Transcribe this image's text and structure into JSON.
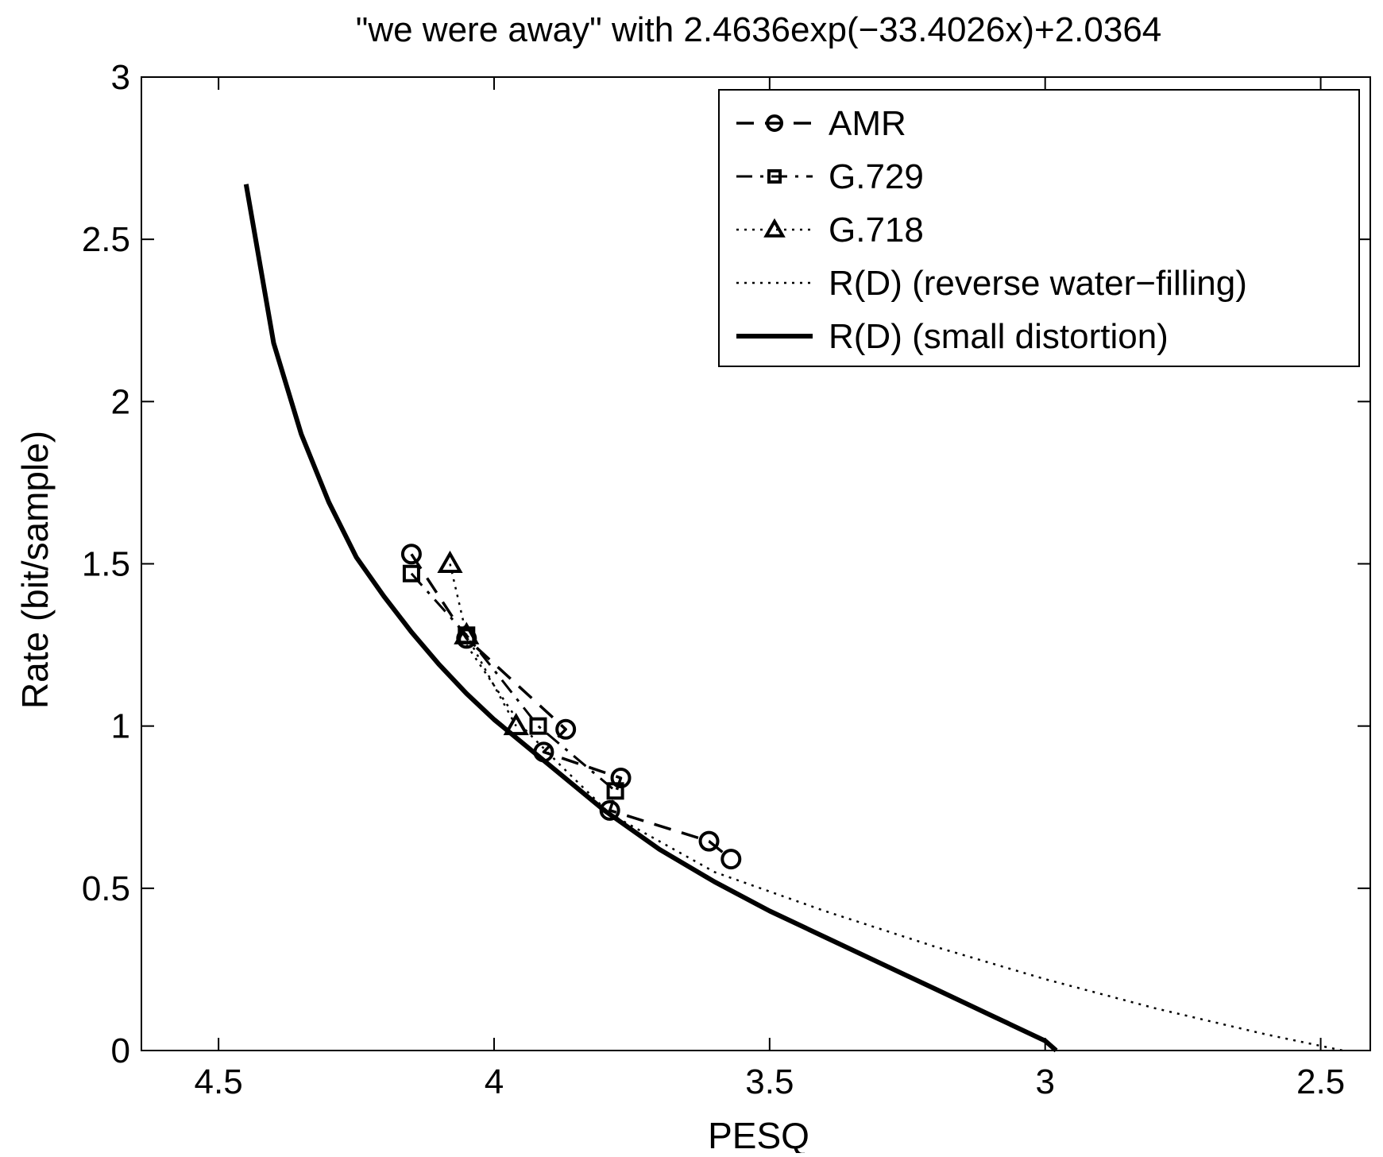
{
  "chart_data": {
    "type": "line",
    "title": "\"we were away\" with 2.4636exp(−33.4026x)+2.0364",
    "xlabel": "PESQ",
    "ylabel": "Rate (bit/sample)",
    "xlim": [
      4.64,
      2.41
    ],
    "ylim": [
      0,
      3
    ],
    "x_reversed": true,
    "xticks": [
      4.5,
      4,
      3.5,
      3,
      2.5
    ],
    "xtick_labels": [
      "4.5",
      "4",
      "3.5",
      "3",
      "2.5"
    ],
    "yticks": [
      0,
      0.5,
      1,
      1.5,
      2,
      2.5,
      3
    ],
    "ytick_labels": [
      "0",
      "0.5",
      "1",
      "1.5",
      "2",
      "2.5",
      "3"
    ],
    "grid": false,
    "legend_position": "top-right",
    "series": [
      {
        "name": "AMR",
        "line_style": "dashed",
        "marker": "circle",
        "line_width": 3.5,
        "points": [
          {
            "x": 4.15,
            "y": 1.53
          },
          {
            "x": 4.05,
            "y": 1.27
          },
          {
            "x": 3.87,
            "y": 0.99
          },
          {
            "x": 3.91,
            "y": 0.92
          },
          {
            "x": 3.77,
            "y": 0.84
          },
          {
            "x": 3.79,
            "y": 0.74
          },
          {
            "x": 3.61,
            "y": 0.645
          },
          {
            "x": 3.57,
            "y": 0.59
          }
        ]
      },
      {
        "name": "G.729",
        "line_style": "dashdot",
        "marker": "square",
        "line_width": 3,
        "points": [
          {
            "x": 4.15,
            "y": 1.47
          },
          {
            "x": 4.05,
            "y": 1.28
          },
          {
            "x": 3.92,
            "y": 1.0
          },
          {
            "x": 3.78,
            "y": 0.8
          }
        ]
      },
      {
        "name": "G.718",
        "line_style": "dotted",
        "marker": "triangle",
        "line_width": 2.5,
        "points": [
          {
            "x": 4.08,
            "y": 1.5
          },
          {
            "x": 4.05,
            "y": 1.28
          },
          {
            "x": 3.96,
            "y": 1.0
          }
        ]
      },
      {
        "name": "R(D) (reverse water−filling)",
        "line_style": "dotted",
        "marker": "none",
        "line_width": 2.5,
        "points": [
          {
            "x": 4.05,
            "y": 1.25
          },
          {
            "x": 3.95,
            "y": 1.0
          },
          {
            "x": 3.88,
            "y": 0.88
          },
          {
            "x": 3.79,
            "y": 0.73
          },
          {
            "x": 3.6,
            "y": 0.55
          },
          {
            "x": 3.4,
            "y": 0.43
          },
          {
            "x": 3.2,
            "y": 0.32
          },
          {
            "x": 3.0,
            "y": 0.22
          },
          {
            "x": 2.8,
            "y": 0.13
          },
          {
            "x": 2.6,
            "y": 0.05
          },
          {
            "x": 2.46,
            "y": 0.0
          }
        ]
      },
      {
        "name": "R(D) (small distortion)",
        "line_style": "solid",
        "marker": "none",
        "line_width": 6,
        "points": [
          {
            "x": 4.45,
            "y": 2.67
          },
          {
            "x": 4.4,
            "y": 2.18
          },
          {
            "x": 4.35,
            "y": 1.9
          },
          {
            "x": 4.3,
            "y": 1.69
          },
          {
            "x": 4.25,
            "y": 1.52
          },
          {
            "x": 4.2,
            "y": 1.4
          },
          {
            "x": 4.15,
            "y": 1.29
          },
          {
            "x": 4.1,
            "y": 1.19
          },
          {
            "x": 4.05,
            "y": 1.1
          },
          {
            "x": 4.0,
            "y": 1.02
          },
          {
            "x": 3.9,
            "y": 0.88
          },
          {
            "x": 3.8,
            "y": 0.74
          },
          {
            "x": 3.7,
            "y": 0.62
          },
          {
            "x": 3.6,
            "y": 0.52
          },
          {
            "x": 3.5,
            "y": 0.43
          },
          {
            "x": 3.4,
            "y": 0.35
          },
          {
            "x": 3.3,
            "y": 0.27
          },
          {
            "x": 3.2,
            "y": 0.19
          },
          {
            "x": 3.1,
            "y": 0.11
          },
          {
            "x": 3.0,
            "y": 0.03
          },
          {
            "x": 2.98,
            "y": 0.0
          }
        ]
      }
    ]
  }
}
